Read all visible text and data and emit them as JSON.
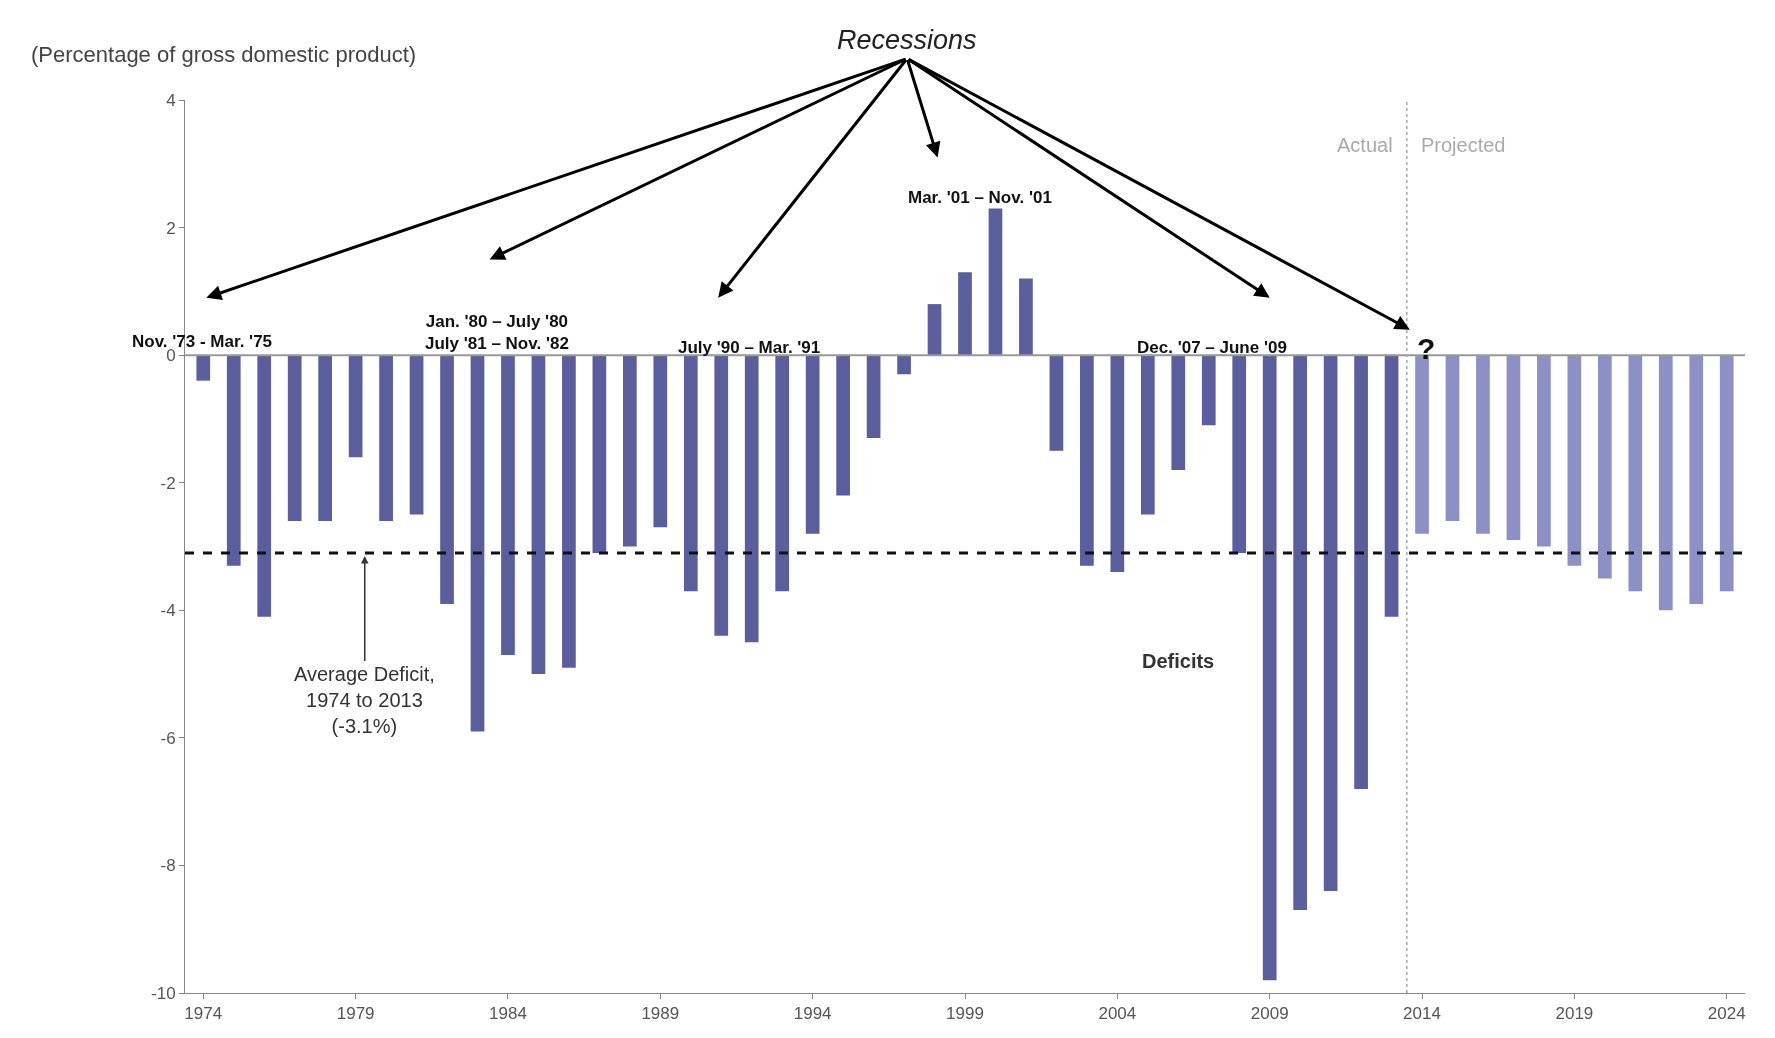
{
  "chart_data": {
    "type": "bar",
    "ylabel": "(Percentage of gross domestic product)",
    "x": [
      1974,
      1975,
      1976,
      1977,
      1978,
      1979,
      1980,
      1981,
      1982,
      1983,
      1984,
      1985,
      1986,
      1987,
      1988,
      1989,
      1990,
      1991,
      1992,
      1993,
      1994,
      1995,
      1996,
      1997,
      1998,
      1999,
      2000,
      2001,
      2002,
      2003,
      2004,
      2005,
      2006,
      2007,
      2008,
      2009,
      2010,
      2011,
      2012,
      2013,
      2014,
      2015,
      2016,
      2017,
      2018,
      2019,
      2020,
      2021,
      2022,
      2023,
      2024
    ],
    "values": [
      -0.4,
      -3.3,
      -4.1,
      -2.6,
      -2.6,
      -1.6,
      -2.6,
      -2.5,
      -3.9,
      -5.9,
      -4.7,
      -5.0,
      -4.9,
      -3.1,
      -3.0,
      -2.7,
      -3.7,
      -4.4,
      -4.5,
      -3.7,
      -2.8,
      -2.2,
      -1.3,
      -0.3,
      0.8,
      1.3,
      2.3,
      1.2,
      -1.5,
      -3.3,
      -3.4,
      -2.5,
      -1.8,
      -1.1,
      -3.1,
      -9.8,
      -8.7,
      -8.4,
      -6.8,
      -4.1,
      -2.8,
      -2.6,
      -2.8,
      -2.9,
      -3.0,
      -3.3,
      -3.5,
      -3.7,
      -4.0,
      -3.9,
      -3.7
    ],
    "colors": [
      "#5a5e9c",
      "#5a5e9c",
      "#5a5e9c",
      "#5a5e9c",
      "#5a5e9c",
      "#5a5e9c",
      "#5a5e9c",
      "#5a5e9c",
      "#5a5e9c",
      "#5a5e9c",
      "#5a5e9c",
      "#5a5e9c",
      "#5a5e9c",
      "#5a5e9c",
      "#5a5e9c",
      "#5a5e9c",
      "#5a5e9c",
      "#5a5e9c",
      "#5a5e9c",
      "#5a5e9c",
      "#5a5e9c",
      "#5a5e9c",
      "#5a5e9c",
      "#5a5e9c",
      "#5a5e9c",
      "#5a5e9c",
      "#5a5e9c",
      "#5a5e9c",
      "#5a5e9c",
      "#5a5e9c",
      "#5a5e9c",
      "#5a5e9c",
      "#5a5e9c",
      "#5a5e9c",
      "#5a5e9c",
      "#5a5e9c",
      "#5a5e9c",
      "#5a5e9c",
      "#5a5e9c",
      "#5a5e9c",
      "#8c90c4",
      "#8c90c4",
      "#8c90c4",
      "#8c90c4",
      "#8c90c4",
      "#8c90c4",
      "#8c90c4",
      "#8c90c4",
      "#8c90c4",
      "#8c90c4",
      "#8c90c4"
    ],
    "xlim": [
      1973.4,
      2024.6
    ],
    "xticks": [
      1974,
      1979,
      1984,
      1989,
      1994,
      1999,
      2004,
      2009,
      2014,
      2019,
      2024
    ],
    "ylim": [
      -10,
      4
    ],
    "yticks": [
      -10,
      -8,
      -6,
      -4,
      -2,
      0,
      2,
      4
    ],
    "legend": false,
    "ref_lines": [
      {
        "axis": "y",
        "value": 0,
        "color": "#999999",
        "line_style": "solid"
      },
      {
        "axis": "y",
        "value": -3.1,
        "label": "Average Deficit,\n1974 to 2013\n(-3.1%)",
        "color": "#111111",
        "line_style": "dashed"
      },
      {
        "axis": "x",
        "value": 2013.5,
        "color": "#aaaaaa",
        "line_style": "dotted"
      }
    ],
    "annotations": [
      {
        "text": "Recessions",
        "x": 2013.6,
        "y": 0.4
      },
      "Actual",
      "Projected",
      "Deficits",
      "Nov. '73 - Mar. '75",
      "Jan. '80 – July '80\nJuly '81 – Nov. '82",
      "July '90 – Mar. '91",
      "Mar. '01 – Nov. '01",
      "Dec. '07 – June '09",
      "?"
    ]
  }
}
